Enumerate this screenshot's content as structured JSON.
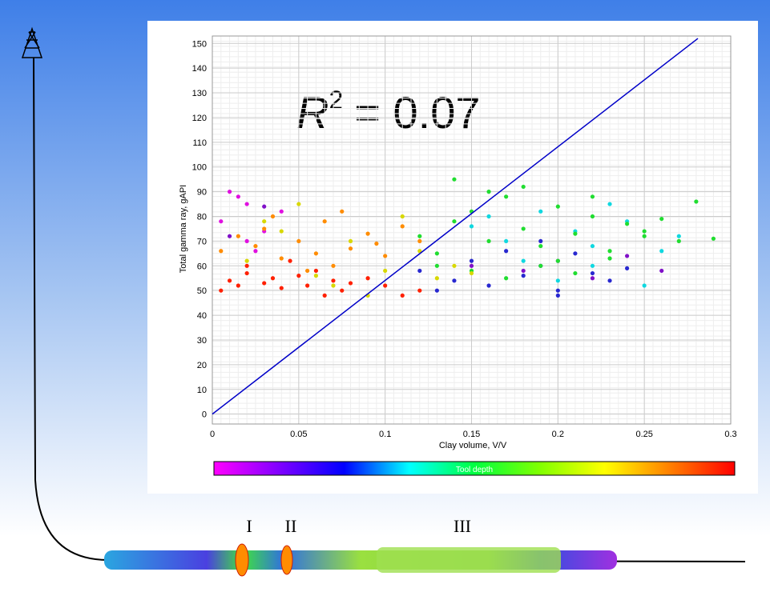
{
  "chart_data": {
    "type": "scatter",
    "x_label": "Clay volume, V/V",
    "y_label": "Total gamma ray, gAPI",
    "annotation": {
      "base": "R",
      "sup": "2",
      "rest": "= 0.07"
    },
    "xlim": [
      0,
      0.3
    ],
    "xticks": [
      0,
      0.05,
      0.1,
      0.15,
      0.2,
      0.25,
      0.3
    ],
    "ylim": [
      -4,
      153
    ],
    "yticks": [
      0,
      10,
      20,
      30,
      40,
      50,
      60,
      70,
      80,
      90,
      100,
      110,
      120,
      130,
      140,
      150
    ],
    "grid": true,
    "fit_line": {
      "color": "#0000c8",
      "x": [
        0,
        0.281
      ],
      "y": [
        0,
        152
      ]
    },
    "colorbar": {
      "label": "Tool depth",
      "colors": [
        "#ff00ff",
        "#8000ff",
        "#0000ff",
        "#00ffff",
        "#00ff40",
        "#80ff00",
        "#ffff00",
        "#ff8000",
        "#ff0000"
      ]
    },
    "series": [
      {
        "color": "#2828d0",
        "x": [
          0.12,
          0.14,
          0.15,
          0.16,
          0.18,
          0.19,
          0.2,
          0.21,
          0.22,
          0.23,
          0.24,
          0.17,
          0.13,
          0.2,
          0.19
        ],
        "y": [
          58,
          54,
          62,
          52,
          56,
          60,
          50,
          65,
          57,
          54,
          59,
          66,
          50,
          48,
          70
        ]
      },
      {
        "color": "#8010c8",
        "x": [
          0.01,
          0.03,
          0.18,
          0.2,
          0.22,
          0.26,
          0.24,
          0.15
        ],
        "y": [
          72,
          84,
          58,
          62,
          55,
          58,
          64,
          60
        ]
      },
      {
        "color": "#10d8e0",
        "x": [
          0.15,
          0.17,
          0.19,
          0.21,
          0.22,
          0.24,
          0.26,
          0.27,
          0.2,
          0.23,
          0.25,
          0.18,
          0.16,
          0.22
        ],
        "y": [
          76,
          70,
          82,
          74,
          68,
          78,
          66,
          72,
          54,
          85,
          52,
          62,
          80,
          60
        ]
      },
      {
        "color": "#20dd30",
        "x": [
          0.12,
          0.13,
          0.14,
          0.15,
          0.16,
          0.17,
          0.18,
          0.19,
          0.2,
          0.21,
          0.22,
          0.23,
          0.24,
          0.25,
          0.26,
          0.27,
          0.28,
          0.29,
          0.14,
          0.16,
          0.18,
          0.2,
          0.22,
          0.15,
          0.17,
          0.19,
          0.21,
          0.23,
          0.25,
          0.13
        ],
        "y": [
          72,
          65,
          78,
          82,
          70,
          88,
          75,
          68,
          84,
          73,
          80,
          66,
          77,
          72,
          79,
          70,
          86,
          71,
          95,
          90,
          92,
          62,
          88,
          58,
          55,
          60,
          57,
          63,
          74,
          60
        ]
      },
      {
        "color": "#e010e0",
        "x": [
          0.005,
          0.01,
          0.02,
          0.03,
          0.015,
          0.04,
          0.02,
          0.025
        ],
        "y": [
          78,
          90,
          85,
          74,
          88,
          82,
          70,
          66
        ]
      },
      {
        "color": "#d8d800",
        "x": [
          0.02,
          0.04,
          0.06,
          0.08,
          0.1,
          0.12,
          0.13,
          0.14,
          0.05,
          0.09,
          0.11,
          0.15,
          0.03,
          0.07
        ],
        "y": [
          62,
          74,
          56,
          70,
          58,
          66,
          55,
          60,
          85,
          48,
          80,
          57,
          78,
          52
        ]
      },
      {
        "color": "#ff8c00",
        "x": [
          0.005,
          0.015,
          0.025,
          0.03,
          0.04,
          0.05,
          0.06,
          0.065,
          0.07,
          0.08,
          0.09,
          0.1,
          0.11,
          0.12,
          0.035,
          0.055,
          0.075,
          0.095
        ],
        "y": [
          66,
          72,
          68,
          75,
          63,
          70,
          65,
          78,
          60,
          67,
          73,
          64,
          76,
          70,
          80,
          58,
          82,
          69
        ]
      },
      {
        "color": "#ff2000",
        "x": [
          0.005,
          0.01,
          0.015,
          0.02,
          0.03,
          0.035,
          0.04,
          0.05,
          0.055,
          0.06,
          0.07,
          0.075,
          0.08,
          0.09,
          0.1,
          0.11,
          0.12,
          0.02,
          0.045,
          0.065
        ],
        "y": [
          50,
          54,
          52,
          57,
          53,
          55,
          51,
          56,
          52,
          58,
          54,
          50,
          53,
          55,
          52,
          48,
          50,
          60,
          62,
          48
        ]
      }
    ]
  },
  "well_labels": [
    "I",
    "II",
    "III"
  ]
}
